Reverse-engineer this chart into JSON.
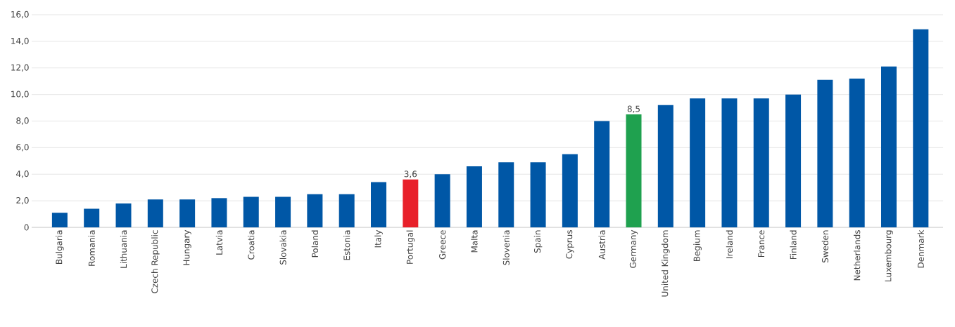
{
  "chart_data": {
    "type": "bar",
    "categories": [
      "Bulgaria",
      "Romania",
      "Lithuania",
      "Czech Republic",
      "Hungary",
      "Latvia",
      "Croatia",
      "Slovakia",
      "Poland",
      "Estonia",
      "Italy",
      "Portugal",
      "Greece",
      "Malta",
      "Slovenia",
      "Spain",
      "Cyprus",
      "Austria",
      "Germany",
      "United Kingdom",
      "Begium",
      "Ireland",
      "France",
      "Finland",
      "Sweden",
      "Netherlands",
      "Luxembourg",
      "Denmark"
    ],
    "values": [
      1.1,
      1.4,
      1.8,
      2.1,
      2.1,
      2.2,
      2.3,
      2.3,
      2.5,
      2.5,
      3.4,
      3.6,
      4.0,
      4.6,
      4.9,
      4.9,
      5.5,
      8.0,
      8.5,
      9.2,
      9.7,
      9.7,
      9.7,
      10.0,
      11.1,
      11.2,
      12.1,
      14.9
    ],
    "colors": [
      "#0057a6",
      "#0057a6",
      "#0057a6",
      "#0057a6",
      "#0057a6",
      "#0057a6",
      "#0057a6",
      "#0057a6",
      "#0057a6",
      "#0057a6",
      "#0057a6",
      "#e8202a",
      "#0057a6",
      "#0057a6",
      "#0057a6",
      "#0057a6",
      "#0057a6",
      "#0057a6",
      "#1fa14f",
      "#0057a6",
      "#0057a6",
      "#0057a6",
      "#0057a6",
      "#0057a6",
      "#0057a6",
      "#0057a6",
      "#0057a6",
      "#0057a6"
    ],
    "value_labels": [
      null,
      null,
      null,
      null,
      null,
      null,
      null,
      null,
      null,
      null,
      null,
      "3,6",
      null,
      null,
      null,
      null,
      null,
      null,
      "8,5",
      null,
      null,
      null,
      null,
      null,
      null,
      null,
      null,
      null
    ],
    "ylim": [
      0,
      16
    ],
    "yticks": [
      0,
      {
        "value": 2,
        "label": "2,0"
      },
      {
        "value": 4,
        "label": "4,0"
      },
      {
        "value": 6,
        "label": "6,0"
      },
      {
        "value": 8,
        "label": "8,0"
      },
      {
        "value": 10,
        "label": "10,0"
      },
      {
        "value": 12,
        "label": "12,0"
      },
      {
        "value": 14,
        "label": "14,0"
      },
      {
        "value": 16,
        "label": "16,0"
      }
    ],
    "grid": "y"
  }
}
